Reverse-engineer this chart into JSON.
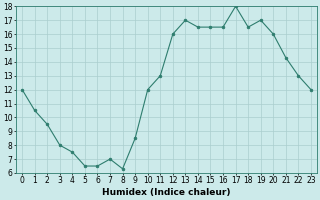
{
  "x": [
    0,
    1,
    2,
    3,
    4,
    5,
    6,
    7,
    8,
    9,
    10,
    11,
    12,
    13,
    14,
    15,
    16,
    17,
    18,
    19,
    20,
    21,
    22,
    23
  ],
  "y": [
    12,
    10.5,
    9.5,
    8,
    7.5,
    6.5,
    6.5,
    7,
    6.3,
    8.5,
    12,
    13,
    16,
    17,
    16.5,
    16.5,
    16.5,
    18,
    16.5,
    17,
    16,
    14.3,
    13,
    12
  ],
  "line_color": "#2e7d6e",
  "marker": "o",
  "marker_size": 2,
  "bg_color": "#cceaea",
  "grid_color": "#aacece",
  "xlabel": "Humidex (Indice chaleur)",
  "ylabel": "",
  "ylim": [
    6,
    18
  ],
  "xlim": [
    -0.5,
    23.5
  ],
  "yticks": [
    6,
    7,
    8,
    9,
    10,
    11,
    12,
    13,
    14,
    15,
    16,
    17,
    18
  ],
  "xticks": [
    0,
    1,
    2,
    3,
    4,
    5,
    6,
    7,
    8,
    9,
    10,
    11,
    12,
    13,
    14,
    15,
    16,
    17,
    18,
    19,
    20,
    21,
    22,
    23
  ],
  "xlabel_fontsize": 6.5,
  "tick_fontsize": 5.5
}
